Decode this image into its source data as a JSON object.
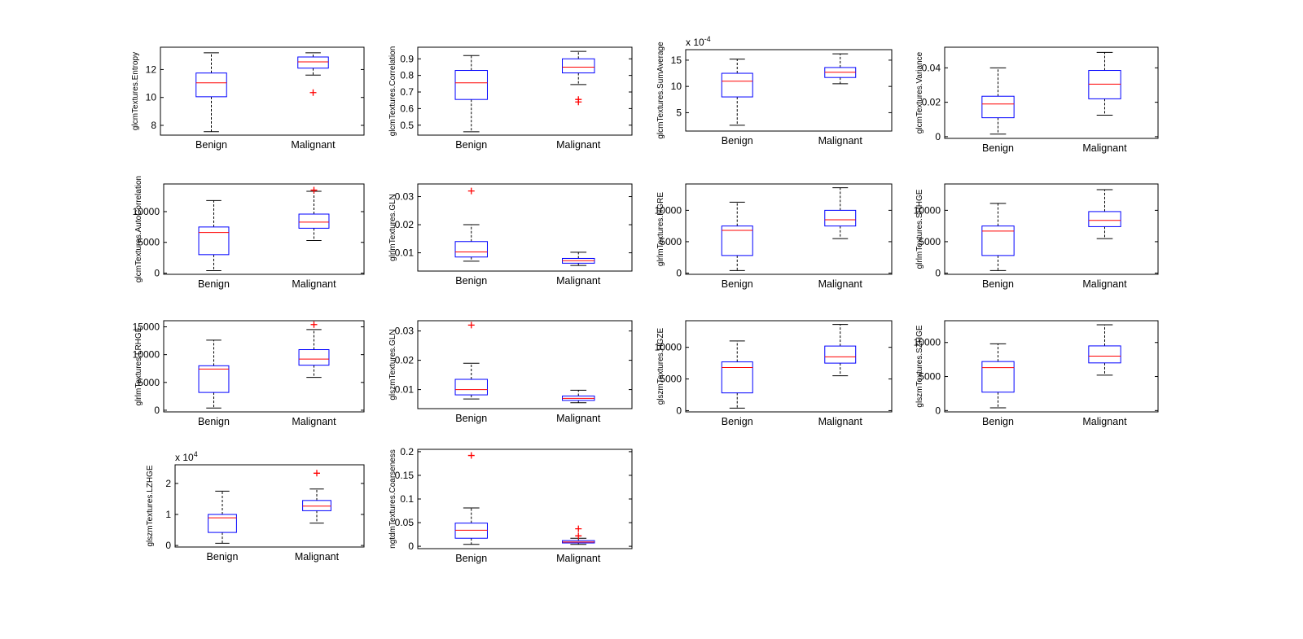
{
  "chart_data": [
    {
      "type": "box",
      "ylabel": "glcmTextures.Entropy",
      "categories": [
        "Benign",
        "Malignant"
      ],
      "ylim": [
        7.3,
        13.6
      ],
      "yticks": [
        8,
        10,
        12
      ],
      "boxes": [
        {
          "whisker_low": 7.55,
          "q1": 10.05,
          "median": 11.05,
          "q3": 11.75,
          "whisker_high": 13.2,
          "outliers": []
        },
        {
          "whisker_low": 11.6,
          "q1": 12.1,
          "median": 12.55,
          "q3": 12.9,
          "whisker_high": 13.2,
          "outliers": [
            10.35
          ]
        }
      ]
    },
    {
      "type": "box",
      "ylabel": "glcmTextures.Correlation",
      "categories": [
        "Benign",
        "Malignant"
      ],
      "ylim": [
        0.44,
        0.97
      ],
      "yticks": [
        0.5,
        0.6,
        0.7,
        0.8,
        0.9
      ],
      "boxes": [
        {
          "whisker_low": 0.46,
          "q1": 0.655,
          "median": 0.755,
          "q3": 0.83,
          "whisker_high": 0.92,
          "outliers": []
        },
        {
          "whisker_low": 0.745,
          "q1": 0.815,
          "median": 0.85,
          "q3": 0.9,
          "whisker_high": 0.945,
          "outliers": [
            0.655,
            0.64
          ]
        }
      ]
    },
    {
      "type": "box",
      "ylabel": "glcmTextures.SumAverage",
      "multiplier": "x 10",
      "multiplier_exp": "-4",
      "categories": [
        "Benign",
        "Malignant"
      ],
      "ylim": [
        1.5,
        17
      ],
      "yticks": [
        5,
        10,
        15
      ],
      "boxes": [
        {
          "whisker_low": 2.6,
          "q1": 8.0,
          "median": 11.0,
          "q3": 12.5,
          "whisker_high": 15.2,
          "outliers": []
        },
        {
          "whisker_low": 10.5,
          "q1": 11.7,
          "median": 12.7,
          "q3": 13.6,
          "whisker_high": 16.2,
          "outliers": []
        }
      ]
    },
    {
      "type": "box",
      "ylabel": "glcmTextures.Variance",
      "categories": [
        "Benign",
        "Malignant"
      ],
      "ylim": [
        -0.001,
        0.052
      ],
      "yticks": [
        0,
        0.02,
        0.04
      ],
      "boxes": [
        {
          "whisker_low": 0.0015,
          "q1": 0.011,
          "median": 0.019,
          "q3": 0.0235,
          "whisker_high": 0.04,
          "outliers": []
        },
        {
          "whisker_low": 0.0125,
          "q1": 0.022,
          "median": 0.0305,
          "q3": 0.0385,
          "whisker_high": 0.049,
          "outliers": []
        }
      ]
    },
    {
      "type": "box",
      "ylabel": "glcmTextures.AutoCorrelation",
      "categories": [
        "Benign",
        "Malignant"
      ],
      "ylim": [
        -200,
        14500
      ],
      "yticks": [
        0,
        5000,
        10000
      ],
      "boxes": [
        {
          "whisker_low": 400,
          "q1": 3000,
          "median": 6600,
          "q3": 7500,
          "whisker_high": 11800,
          "outliers": []
        },
        {
          "whisker_low": 5300,
          "q1": 7300,
          "median": 8300,
          "q3": 9600,
          "whisker_high": 13300,
          "outliers": [
            13500
          ]
        }
      ]
    },
    {
      "type": "box",
      "ylabel": "glrlmTextures.GLN",
      "categories": [
        "Benign",
        "Malignant"
      ],
      "ylim": [
        0.0035,
        0.0345
      ],
      "yticks": [
        0.01,
        0.02,
        0.03
      ],
      "boxes": [
        {
          "whisker_low": 0.007,
          "q1": 0.0085,
          "median": 0.0103,
          "q3": 0.014,
          "whisker_high": 0.02,
          "outliers": [
            0.032
          ]
        },
        {
          "whisker_low": 0.0055,
          "q1": 0.0063,
          "median": 0.0072,
          "q3": 0.008,
          "whisker_high": 0.0102,
          "outliers": []
        }
      ]
    },
    {
      "type": "box",
      "ylabel": "glrlmTextures.HGRE",
      "categories": [
        "Benign",
        "Malignant"
      ],
      "ylim": [
        -200,
        14200
      ],
      "yticks": [
        0,
        5000,
        10000
      ],
      "boxes": [
        {
          "whisker_low": 400,
          "q1": 2800,
          "median": 6800,
          "q3": 7500,
          "whisker_high": 11300,
          "outliers": []
        },
        {
          "whisker_low": 5500,
          "q1": 7500,
          "median": 8500,
          "q3": 10000,
          "whisker_high": 13600,
          "outliers": []
        }
      ]
    },
    {
      "type": "box",
      "ylabel": "glrlmTextures.SRHGE",
      "categories": [
        "Benign",
        "Malignant"
      ],
      "ylim": [
        -200,
        14200
      ],
      "yticks": [
        0,
        5000,
        10000
      ],
      "boxes": [
        {
          "whisker_low": 400,
          "q1": 2800,
          "median": 6700,
          "q3": 7500,
          "whisker_high": 11100,
          "outliers": []
        },
        {
          "whisker_low": 5500,
          "q1": 7400,
          "median": 8400,
          "q3": 9800,
          "whisker_high": 13300,
          "outliers": []
        }
      ]
    },
    {
      "type": "box",
      "ylabel": "glrlmTextures.LRHGE",
      "categories": [
        "Benign",
        "Malignant"
      ],
      "ylim": [
        -300,
        16100
      ],
      "yticks": [
        0,
        5000,
        10000,
        15000
      ],
      "boxes": [
        {
          "whisker_low": 400,
          "q1": 3200,
          "median": 7400,
          "q3": 8000,
          "whisker_high": 12600,
          "outliers": []
        },
        {
          "whisker_low": 5900,
          "q1": 8100,
          "median": 9200,
          "q3": 10900,
          "whisker_high": 14500,
          "outliers": [
            15400
          ]
        }
      ]
    },
    {
      "type": "box",
      "ylabel": "glszmTextures.GLN",
      "categories": [
        "Benign",
        "Malignant"
      ],
      "ylim": [
        0.0035,
        0.0335
      ],
      "yticks": [
        0.01,
        0.02,
        0.03
      ],
      "boxes": [
        {
          "whisker_low": 0.0068,
          "q1": 0.0082,
          "median": 0.01,
          "q3": 0.0135,
          "whisker_high": 0.019,
          "outliers": [
            0.032
          ]
        },
        {
          "whisker_low": 0.0055,
          "q1": 0.0063,
          "median": 0.007,
          "q3": 0.0078,
          "whisker_high": 0.0098,
          "outliers": []
        }
      ]
    },
    {
      "type": "box",
      "ylabel": "glszmTextures.HGZE",
      "categories": [
        "Benign",
        "Malignant"
      ],
      "ylim": [
        -200,
        14200
      ],
      "yticks": [
        0,
        5000,
        10000
      ],
      "boxes": [
        {
          "whisker_low": 400,
          "q1": 2800,
          "median": 6800,
          "q3": 7700,
          "whisker_high": 11000,
          "outliers": []
        },
        {
          "whisker_low": 5500,
          "q1": 7500,
          "median": 8500,
          "q3": 10200,
          "whisker_high": 13600,
          "outliers": []
        }
      ]
    },
    {
      "type": "box",
      "ylabel": "glszmTextures.SZHGE",
      "categories": [
        "Benign",
        "Malignant"
      ],
      "ylim": [
        -200,
        13200
      ],
      "yticks": [
        0,
        5000,
        10000
      ],
      "boxes": [
        {
          "whisker_low": 400,
          "q1": 2700,
          "median": 6300,
          "q3": 7200,
          "whisker_high": 9800,
          "outliers": []
        },
        {
          "whisker_low": 5200,
          "q1": 7000,
          "median": 8000,
          "q3": 9500,
          "whisker_high": 12600,
          "outliers": []
        }
      ]
    },
    {
      "type": "box",
      "ylabel": "glszmTextures.LZHGE",
      "multiplier": "x 10",
      "multiplier_exp": "4",
      "categories": [
        "Benign",
        "Malignant"
      ],
      "ylim": [
        -0.05,
        2.6
      ],
      "yticks": [
        0,
        1,
        2
      ],
      "boxes": [
        {
          "whisker_low": 0.07,
          "q1": 0.42,
          "median": 0.89,
          "q3": 1.0,
          "whisker_high": 1.75,
          "outliers": []
        },
        {
          "whisker_low": 0.72,
          "q1": 1.12,
          "median": 1.27,
          "q3": 1.45,
          "whisker_high": 1.82,
          "outliers": [
            2.33
          ]
        }
      ]
    },
    {
      "type": "box",
      "ylabel": "ngtdmTextures.Coarseness",
      "categories": [
        "Benign",
        "Malignant"
      ],
      "ylim": [
        -0.005,
        0.205
      ],
      "yticks": [
        0,
        0.05,
        0.1,
        0.15,
        0.2
      ],
      "boxes": [
        {
          "whisker_low": 0.004,
          "q1": 0.017,
          "median": 0.034,
          "q3": 0.049,
          "whisker_high": 0.081,
          "outliers": [
            0.192
          ]
        },
        {
          "whisker_low": 0.004,
          "q1": 0.007,
          "median": 0.009,
          "q3": 0.012,
          "whisker_high": 0.017,
          "outliers": [
            0.022,
            0.037
          ]
        }
      ]
    }
  ],
  "colors": {
    "box": "#0000ff",
    "median": "#ff0000",
    "outlier": "#ff0000",
    "whisker": "#000000",
    "axes": "#000000"
  }
}
